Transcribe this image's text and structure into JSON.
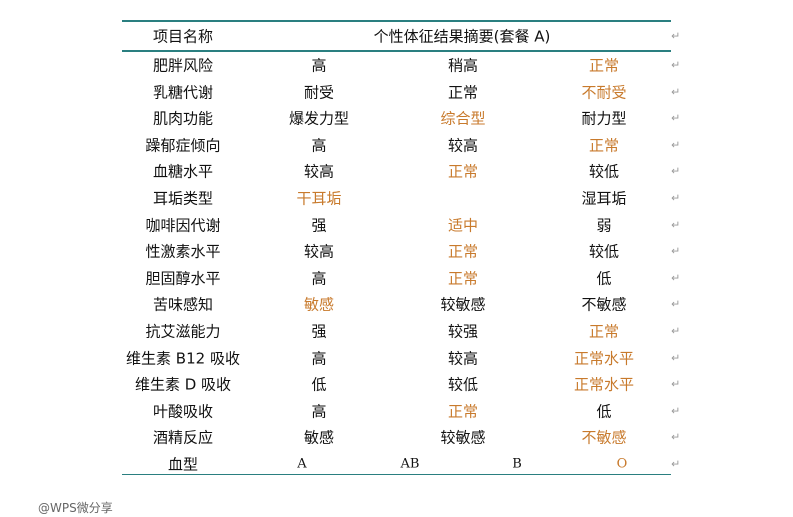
{
  "header": {
    "name_col": "项目名称",
    "title": "个性体征结果摘要(套餐 A)"
  },
  "accent_color": "#c87a2c",
  "rows": [
    {
      "name": "肥胖风险",
      "v": [
        "高",
        "稍高",
        "正常"
      ],
      "hl": 2
    },
    {
      "name": "乳糖代谢",
      "v": [
        "耐受",
        "正常",
        "不耐受"
      ],
      "hl": 2
    },
    {
      "name": "肌肉功能",
      "v": [
        "爆发力型",
        "综合型",
        "耐力型"
      ],
      "hl": 1
    },
    {
      "name": "躁郁症倾向",
      "v": [
        "高",
        "较高",
        "正常"
      ],
      "hl": 2
    },
    {
      "name": "血糖水平",
      "v": [
        "较高",
        "正常",
        "较低"
      ],
      "hl": 1
    },
    {
      "name": "耳垢类型",
      "v": [
        "干耳垢",
        "",
        "湿耳垢"
      ],
      "hl": 0
    },
    {
      "name": "咖啡因代谢",
      "v": [
        "强",
        "适中",
        "弱"
      ],
      "hl": 1
    },
    {
      "name": "性激素水平",
      "v": [
        "较高",
        "正常",
        "较低"
      ],
      "hl": 1
    },
    {
      "name": "胆固醇水平",
      "v": [
        "高",
        "正常",
        "低"
      ],
      "hl": 1
    },
    {
      "name": "苦味感知",
      "v": [
        "敏感",
        "较敏感",
        "不敏感"
      ],
      "hl": 0
    },
    {
      "name": "抗艾滋能力",
      "v": [
        "强",
        "较强",
        "正常"
      ],
      "hl": 2
    },
    {
      "name": "维生素 B12 吸收",
      "v": [
        "高",
        "较高",
        "正常水平"
      ],
      "hl": 2
    },
    {
      "name": "维生素 D 吸收",
      "v": [
        "低",
        "较低",
        "正常水平"
      ],
      "hl": 2
    },
    {
      "name": "叶酸吸收",
      "v": [
        "高",
        "正常",
        "低"
      ],
      "hl": 1
    },
    {
      "name": "酒精反应",
      "v": [
        "敏感",
        "较敏感",
        "不敏感"
      ],
      "hl": 2
    }
  ],
  "blood": {
    "name": "血型",
    "v": [
      "A",
      "AB",
      "B",
      "O"
    ],
    "hl": 3
  },
  "watermark": "@WPS微分享"
}
